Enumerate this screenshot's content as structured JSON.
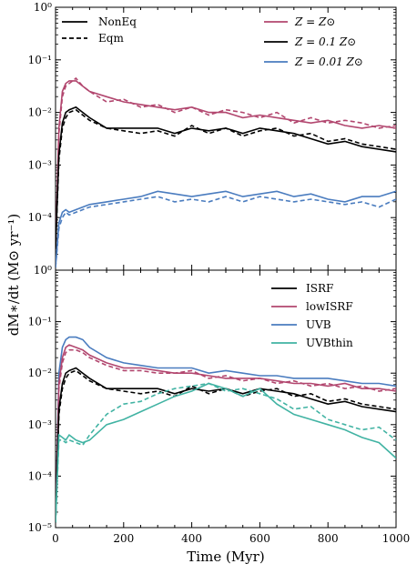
{
  "colors": {
    "solar": "#b2476f",
    "tenth": "#000000",
    "hundredth": "#4a7cbf",
    "ISRF": "#000000",
    "lowISRF": "#b2476f",
    "UVB": "#4a7cbf",
    "UVBthin": "#41b3a3"
  },
  "chart_data": [
    {
      "type": "line",
      "scale": "log",
      "xlabel": "",
      "ylabel": "",
      "xlim": [
        0,
        1000
      ],
      "ylim": [
        1,
        1e-07
      ],
      "ylim_log10": [
        -5,
        0
      ],
      "legend_style": [
        {
          "name": "NonEq",
          "dash": "solid"
        },
        {
          "name": "Eqm",
          "dash": "dashed"
        }
      ],
      "legend_metallicity": [
        {
          "name": "Z = Z⊙",
          "color": "#b2476f"
        },
        {
          "name": "Z = 0.1 Z⊙",
          "color": "#000000"
        },
        {
          "name": "Z = 0.01 Z⊙",
          "color": "#4a7cbf"
        }
      ],
      "ytick_labels": [
        "10⁻⁴",
        "10⁻³",
        "10⁻²",
        "10⁻¹",
        "10⁰"
      ],
      "series": [
        {
          "color": "#b2476f",
          "dash": "solid",
          "x": [
            0,
            10,
            20,
            30,
            40,
            60,
            80,
            100,
            150,
            200,
            250,
            300,
            350,
            400,
            450,
            500,
            550,
            600,
            650,
            700,
            750,
            800,
            850,
            900,
            950,
            1000
          ],
          "log10y": [
            -4.6,
            -2.3,
            -1.6,
            -1.45,
            -1.4,
            -1.4,
            -1.5,
            -1.6,
            -1.7,
            -1.8,
            -1.85,
            -1.9,
            -1.95,
            -1.9,
            -2.0,
            -2.0,
            -2.1,
            -2.05,
            -2.1,
            -2.15,
            -2.2,
            -2.15,
            -2.25,
            -2.3,
            -2.25,
            -2.3
          ]
        },
        {
          "color": "#b2476f",
          "dash": "dashed",
          "x": [
            0,
            10,
            20,
            30,
            40,
            60,
            80,
            100,
            150,
            200,
            250,
            300,
            350,
            400,
            450,
            500,
            550,
            600,
            650,
            700,
            750,
            800,
            850,
            900,
            950,
            1000
          ],
          "log10y": [
            -4.6,
            -2.4,
            -1.7,
            -1.5,
            -1.45,
            -1.35,
            -1.5,
            -1.6,
            -1.8,
            -1.75,
            -1.9,
            -1.85,
            -2.0,
            -1.9,
            -2.05,
            -1.95,
            -2.0,
            -2.1,
            -2.0,
            -2.2,
            -2.1,
            -2.2,
            -2.15,
            -2.2,
            -2.3,
            -2.25
          ]
        },
        {
          "color": "#000000",
          "dash": "solid",
          "x": [
            0,
            10,
            20,
            30,
            40,
            60,
            80,
            100,
            150,
            200,
            250,
            300,
            350,
            400,
            450,
            500,
            550,
            600,
            650,
            700,
            750,
            800,
            850,
            900,
            950,
            1000
          ],
          "log10y": [
            -4.6,
            -2.8,
            -2.2,
            -2.0,
            -1.95,
            -1.9,
            -2.0,
            -2.1,
            -2.3,
            -2.3,
            -2.3,
            -2.3,
            -2.4,
            -2.3,
            -2.35,
            -2.3,
            -2.4,
            -2.3,
            -2.35,
            -2.4,
            -2.5,
            -2.6,
            -2.55,
            -2.65,
            -2.7,
            -2.75
          ]
        },
        {
          "color": "#000000",
          "dash": "dashed",
          "x": [
            0,
            10,
            20,
            30,
            40,
            60,
            80,
            100,
            150,
            200,
            250,
            300,
            350,
            400,
            450,
            500,
            550,
            600,
            650,
            700,
            750,
            800,
            850,
            900,
            950,
            1000
          ],
          "log10y": [
            -4.6,
            -2.9,
            -2.3,
            -2.1,
            -2.0,
            -1.95,
            -2.05,
            -2.15,
            -2.3,
            -2.35,
            -2.4,
            -2.35,
            -2.45,
            -2.25,
            -2.4,
            -2.3,
            -2.45,
            -2.35,
            -2.3,
            -2.45,
            -2.4,
            -2.55,
            -2.5,
            -2.6,
            -2.65,
            -2.7
          ]
        },
        {
          "color": "#4a7cbf",
          "dash": "solid",
          "x": [
            0,
            10,
            20,
            30,
            40,
            60,
            80,
            100,
            150,
            200,
            250,
            300,
            350,
            400,
            450,
            500,
            550,
            600,
            650,
            700,
            750,
            800,
            850,
            900,
            950,
            1000
          ],
          "log10y": [
            -4.95,
            -4.1,
            -3.9,
            -3.85,
            -3.9,
            -3.85,
            -3.8,
            -3.75,
            -3.7,
            -3.65,
            -3.6,
            -3.5,
            -3.55,
            -3.6,
            -3.55,
            -3.5,
            -3.6,
            -3.55,
            -3.5,
            -3.6,
            -3.55,
            -3.65,
            -3.7,
            -3.6,
            -3.6,
            -3.5
          ]
        },
        {
          "color": "#4a7cbf",
          "dash": "dashed",
          "x": [
            0,
            10,
            20,
            30,
            40,
            60,
            80,
            100,
            150,
            200,
            250,
            300,
            350,
            400,
            450,
            500,
            550,
            600,
            650,
            700,
            750,
            800,
            850,
            900,
            950,
            1000
          ],
          "log10y": [
            -4.95,
            -4.2,
            -4.0,
            -3.9,
            -3.95,
            -3.9,
            -3.85,
            -3.8,
            -3.75,
            -3.7,
            -3.65,
            -3.6,
            -3.7,
            -3.65,
            -3.7,
            -3.6,
            -3.7,
            -3.6,
            -3.65,
            -3.7,
            -3.65,
            -3.7,
            -3.75,
            -3.7,
            -3.8,
            -3.65
          ]
        }
      ]
    },
    {
      "type": "line",
      "scale": "log",
      "xlabel": "Time (Myr)",
      "ylabel": "",
      "xlim": [
        0,
        1000
      ],
      "ylim_log10": [
        -5,
        0
      ],
      "legend": [
        {
          "name": "ISRF",
          "color": "#000000"
        },
        {
          "name": "lowISRF",
          "color": "#b2476f"
        },
        {
          "name": "UVB",
          "color": "#4a7cbf"
        },
        {
          "name": "UVBthin",
          "color": "#41b3a3"
        }
      ],
      "xtick_labels": [
        "0",
        "200",
        "400",
        "600",
        "800",
        "1000"
      ],
      "ytick_labels": [
        "10⁻⁵",
        "10⁻⁴",
        "10⁻³",
        "10⁻²",
        "10⁻¹"
      ],
      "series": [
        {
          "color": "#4a7cbf",
          "dash": "solid",
          "x": [
            0,
            10,
            20,
            30,
            40,
            60,
            80,
            100,
            150,
            200,
            250,
            300,
            350,
            400,
            450,
            500,
            550,
            600,
            650,
            700,
            750,
            800,
            850,
            900,
            950,
            1000
          ],
          "log10y": [
            -4.9,
            -2.0,
            -1.5,
            -1.35,
            -1.3,
            -1.3,
            -1.35,
            -1.5,
            -1.7,
            -1.8,
            -1.85,
            -1.9,
            -1.9,
            -1.9,
            -2.0,
            -1.95,
            -2.0,
            -2.05,
            -2.05,
            -2.1,
            -2.1,
            -2.1,
            -2.15,
            -2.2,
            -2.2,
            -2.25
          ]
        },
        {
          "color": "#b2476f",
          "dash": "solid",
          "x": [
            0,
            10,
            20,
            30,
            40,
            60,
            80,
            100,
            150,
            200,
            250,
            300,
            350,
            400,
            450,
            500,
            550,
            600,
            650,
            700,
            750,
            800,
            850,
            900,
            950,
            1000
          ],
          "log10y": [
            -4.9,
            -2.2,
            -1.7,
            -1.5,
            -1.45,
            -1.5,
            -1.55,
            -1.65,
            -1.8,
            -1.9,
            -1.9,
            -1.95,
            -2.0,
            -2.0,
            -2.05,
            -2.1,
            -2.1,
            -2.1,
            -2.15,
            -2.2,
            -2.2,
            -2.25,
            -2.2,
            -2.3,
            -2.3,
            -2.35
          ]
        },
        {
          "color": "#b2476f",
          "dash": "dashed",
          "x": [
            0,
            10,
            20,
            30,
            40,
            60,
            80,
            100,
            150,
            200,
            250,
            300,
            350,
            400,
            450,
            500,
            550,
            600,
            650,
            700,
            750,
            800,
            850,
            900,
            950,
            1000
          ],
          "log10y": [
            -4.9,
            -2.3,
            -1.8,
            -1.6,
            -1.55,
            -1.55,
            -1.6,
            -1.7,
            -1.85,
            -1.95,
            -1.95,
            -2.0,
            -2.0,
            -1.95,
            -2.1,
            -2.05,
            -2.15,
            -2.1,
            -2.2,
            -2.15,
            -2.25,
            -2.2,
            -2.3,
            -2.25,
            -2.35,
            -2.3
          ]
        },
        {
          "color": "#000000",
          "dash": "solid",
          "x": [
            0,
            10,
            20,
            30,
            40,
            60,
            80,
            100,
            150,
            200,
            250,
            300,
            350,
            400,
            450,
            500,
            550,
            600,
            650,
            700,
            750,
            800,
            850,
            900,
            950,
            1000
          ],
          "log10y": [
            -4.9,
            -2.7,
            -2.2,
            -2.0,
            -1.95,
            -1.9,
            -2.0,
            -2.1,
            -2.3,
            -2.3,
            -2.3,
            -2.3,
            -2.4,
            -2.3,
            -2.35,
            -2.3,
            -2.4,
            -2.3,
            -2.35,
            -2.4,
            -2.5,
            -2.6,
            -2.55,
            -2.65,
            -2.7,
            -2.75
          ]
        },
        {
          "color": "#000000",
          "dash": "dashed",
          "x": [
            0,
            10,
            20,
            30,
            40,
            60,
            80,
            100,
            150,
            200,
            250,
            300,
            350,
            400,
            450,
            500,
            550,
            600,
            650,
            700,
            750,
            800,
            850,
            900,
            950,
            1000
          ],
          "log10y": [
            -4.9,
            -2.8,
            -2.3,
            -2.1,
            -2.0,
            -1.95,
            -2.05,
            -2.15,
            -2.3,
            -2.35,
            -2.4,
            -2.35,
            -2.45,
            -2.25,
            -2.4,
            -2.3,
            -2.45,
            -2.35,
            -2.3,
            -2.45,
            -2.4,
            -2.55,
            -2.5,
            -2.6,
            -2.65,
            -2.7
          ]
        },
        {
          "color": "#41b3a3",
          "dash": "solid",
          "x": [
            0,
            10,
            20,
            30,
            40,
            60,
            80,
            100,
            150,
            200,
            250,
            300,
            350,
            400,
            450,
            500,
            550,
            600,
            650,
            700,
            750,
            800,
            850,
            900,
            950,
            1000
          ],
          "log10y": [
            -4.9,
            -3.2,
            -3.25,
            -3.3,
            -3.2,
            -3.3,
            -3.35,
            -3.3,
            -3.0,
            -2.9,
            -2.75,
            -2.6,
            -2.45,
            -2.35,
            -2.2,
            -2.3,
            -2.45,
            -2.3,
            -2.6,
            -2.8,
            -2.9,
            -3.0,
            -3.1,
            -3.25,
            -3.35,
            -3.65
          ]
        },
        {
          "color": "#41b3a3",
          "dash": "dashed",
          "x": [
            0,
            10,
            20,
            30,
            40,
            60,
            80,
            100,
            150,
            200,
            250,
            300,
            350,
            400,
            450,
            500,
            550,
            600,
            650,
            700,
            750,
            800,
            850,
            900,
            950,
            1000
          ],
          "log10y": [
            -4.9,
            -3.3,
            -3.3,
            -3.35,
            -3.3,
            -3.35,
            -3.4,
            -3.2,
            -2.8,
            -2.6,
            -2.55,
            -2.4,
            -2.3,
            -2.25,
            -2.2,
            -2.35,
            -2.3,
            -2.4,
            -2.5,
            -2.7,
            -2.65,
            -2.9,
            -3.0,
            -3.1,
            -3.05,
            -3.3
          ]
        }
      ]
    }
  ],
  "axes": {
    "shared_ylabel": "dM∗/dt (M⊙ yr⁻¹)",
    "top_ytick_labels": [
      "10⁻⁴",
      "10⁻³",
      "10⁻²",
      "10⁻¹",
      "10⁰"
    ],
    "top_ytick_bottom": "10⁰",
    "xlabel": "Time (Myr)"
  }
}
